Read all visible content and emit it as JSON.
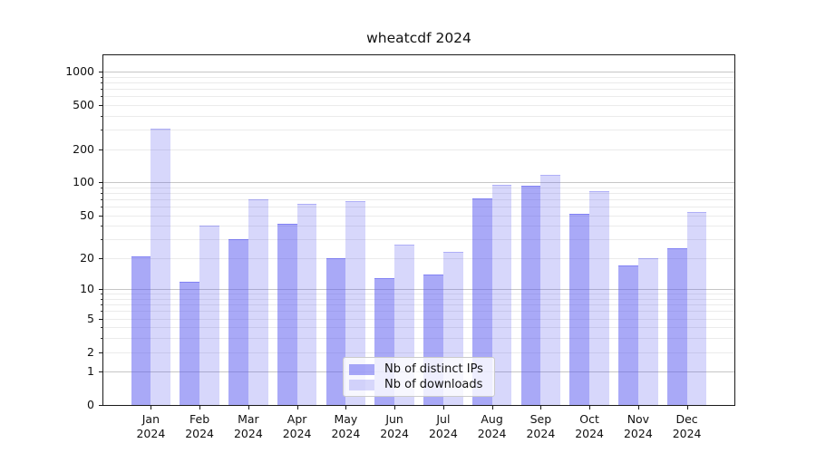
{
  "chart_data": {
    "type": "bar",
    "title": "wheatcdf 2024",
    "categories": [
      "Jan",
      "Feb",
      "Mar",
      "Apr",
      "May",
      "Jun",
      "Jul",
      "Aug",
      "Sep",
      "Oct",
      "Nov",
      "Dec"
    ],
    "category_year": "2024",
    "series": [
      {
        "name": "Nb of distinct IPs",
        "values": [
          21,
          12,
          30,
          42,
          20,
          13,
          14,
          71,
          93,
          52,
          17,
          25
        ]
      },
      {
        "name": "Nb of downloads",
        "values": [
          310,
          40,
          70,
          64,
          67,
          27,
          23,
          95,
          117,
          83,
          20,
          54
        ]
      }
    ],
    "yscale": "log1p",
    "ylim": [
      0,
      1410
    ],
    "yticks": [
      {
        "v": 1000,
        "label": "1000"
      },
      {
        "v": 500,
        "label": "500"
      },
      {
        "v": 200,
        "label": "200"
      },
      {
        "v": 100,
        "label": "100"
      },
      {
        "v": 50,
        "label": "50"
      },
      {
        "v": 20,
        "label": "20"
      },
      {
        "v": 10,
        "label": "10"
      },
      {
        "v": 5,
        "label": "5"
      },
      {
        "v": 2,
        "label": "2"
      },
      {
        "v": 1,
        "label": "1"
      },
      {
        "v": 0,
        "label": "0"
      }
    ],
    "grid_major": [
      1,
      10,
      100,
      1000
    ],
    "grid_minor": [
      2,
      3,
      4,
      5,
      6,
      7,
      8,
      9,
      20,
      30,
      40,
      50,
      60,
      70,
      80,
      90,
      200,
      300,
      400,
      500,
      600,
      700,
      800,
      900
    ],
    "legend": {
      "entries": [
        "Nb of distinct IPs",
        "Nb of downloads"
      ],
      "position": "lower center inside"
    },
    "colors": {
      "bar_ips": "rgba(83,83,239,0.5)",
      "bar_downloads": "rgba(83,83,239,0.23)",
      "grid_major": "#c6c6c6",
      "grid_minor": "#ebebeb",
      "spine": "#1a1a1a",
      "text": "#111111"
    }
  }
}
